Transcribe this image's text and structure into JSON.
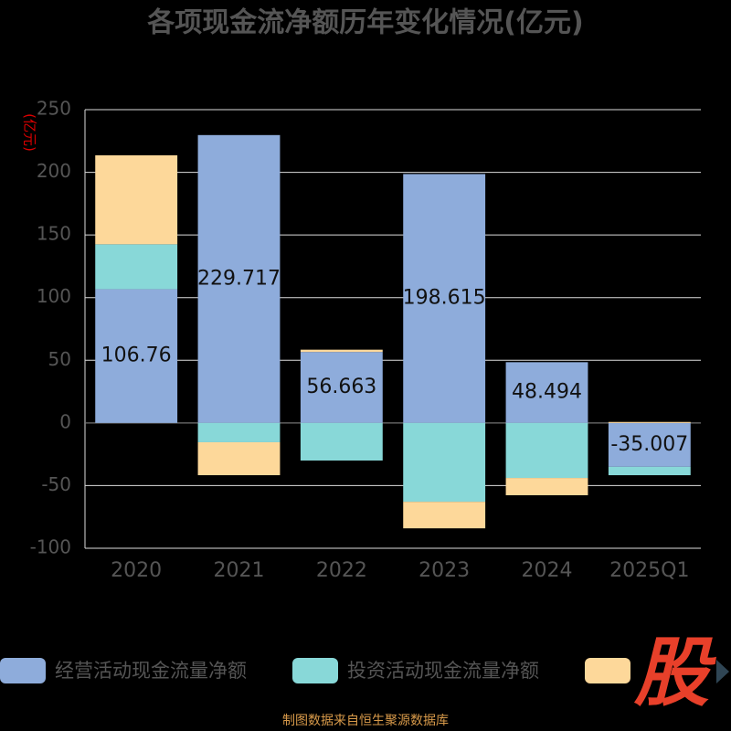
{
  "chart_data": {
    "type": "bar",
    "stacked": true,
    "title": "各项现金流净额历年变化情况(亿元)",
    "y_label": "(亿元)",
    "categories": [
      "2020",
      "2021",
      "2022",
      "2023",
      "2024",
      "2025Q1"
    ],
    "series": [
      {
        "name": "经营活动现金流量净额",
        "color": "#8eacdb",
        "values": [
          106.76,
          229.717,
          56.663,
          198.615,
          48.494,
          -35.007
        ],
        "show_labels": true
      },
      {
        "name": "投资活动现金流量净额",
        "color": "#88d8d8",
        "values": [
          35.8,
          -15.4,
          -30,
          -62.9,
          -43.9,
          -6.7
        ]
      },
      {
        "name": null,
        "color": "#fdd89a",
        "values": [
          71,
          -26.3,
          1.8,
          -21.2,
          -13.8,
          0.8
        ]
      }
    ],
    "ylim": [
      -100,
      250
    ],
    "yticks": [
      -100,
      -50,
      0,
      50,
      100,
      150,
      200,
      250
    ],
    "grid": true,
    "watermark": "股",
    "source": "制图数据来自恒生聚源数据库"
  }
}
